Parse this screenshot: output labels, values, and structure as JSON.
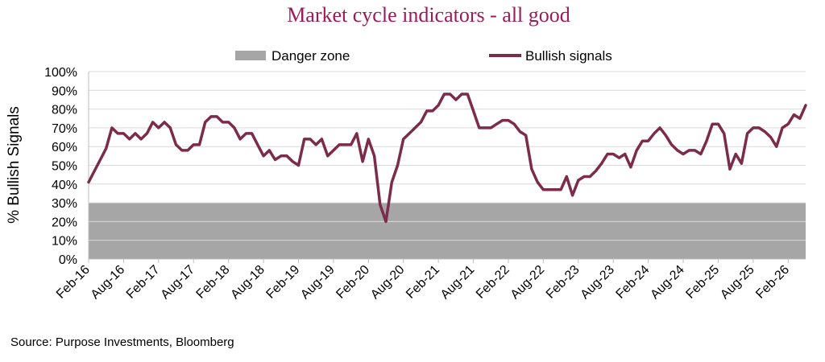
{
  "chart_data": {
    "type": "line",
    "title": "Market cycle indicators - all good",
    "ylabel": "% Bullish Signals",
    "xlabel": "",
    "ylim": [
      0,
      100
    ],
    "y_ticks": [
      "0%",
      "10%",
      "20%",
      "30%",
      "40%",
      "50%",
      "60%",
      "70%",
      "80%",
      "90%",
      "100%"
    ],
    "x_ticks": [
      "Feb-16",
      "Aug-16",
      "Feb-17",
      "Aug-17",
      "Feb-18",
      "Aug-18",
      "Feb-19",
      "Aug-19",
      "Feb-20",
      "Aug-20",
      "Feb-21",
      "Aug-21",
      "Feb-22",
      "Aug-22",
      "Feb-23",
      "Aug-23",
      "Feb-24",
      "Aug-24",
      "Feb-25",
      "Aug-25",
      "Feb-26"
    ],
    "x_start": "Feb-16",
    "grid": "horizontal",
    "legend_position": "top",
    "danger_zone": {
      "name": "Danger zone",
      "from": 0,
      "to": 30,
      "color": "#a6a6a6"
    },
    "series": [
      {
        "name": "Bullish signals",
        "color": "#7b2c4a",
        "values": [
          41,
          47,
          53,
          59,
          70,
          67,
          67,
          64,
          67,
          64,
          67,
          73,
          70,
          73,
          70,
          61,
          58,
          58,
          61,
          61,
          73,
          76,
          76,
          73,
          73,
          70,
          64,
          67,
          67,
          61,
          55,
          58,
          53,
          55,
          55,
          52,
          50,
          64,
          64,
          61,
          64,
          55,
          58,
          61,
          61,
          61,
          67,
          52,
          64,
          55,
          29,
          20,
          41,
          50,
          64,
          67,
          70,
          73,
          79,
          79,
          82,
          88,
          88,
          85,
          88,
          88,
          79,
          70,
          70,
          70,
          72,
          74,
          74,
          72,
          68,
          66,
          48,
          41,
          37,
          37,
          37,
          37,
          44,
          34,
          42,
          44,
          44,
          47,
          51,
          56,
          56,
          54,
          56,
          49,
          58,
          63,
          63,
          67,
          70,
          66,
          61,
          58,
          56,
          58,
          58,
          56,
          63,
          72,
          72,
          67,
          48,
          56,
          51,
          67,
          70,
          70,
          68,
          65,
          60,
          70,
          72,
          77,
          75,
          82
        ]
      }
    ]
  },
  "source": "Source: Purpose Investments, Bloomberg"
}
